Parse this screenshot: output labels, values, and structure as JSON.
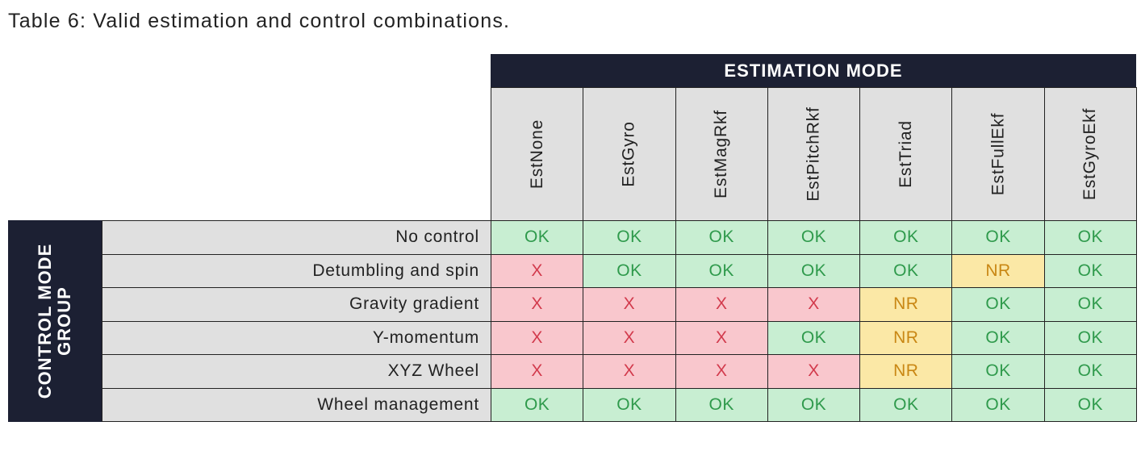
{
  "caption": "Table 6: Valid estimation and control combinations.",
  "column_group": "ESTIMATION MODE",
  "row_group": [
    "CONTROL MODE",
    "GROUP"
  ],
  "columns": [
    "EstNone",
    "EstGyro",
    "EstMagRkf",
    "EstPitchRkf",
    "EstTriad",
    "EstFullEkf",
    "EstGyroEkf"
  ],
  "rows": [
    {
      "label": "No control",
      "cells": [
        "OK",
        "OK",
        "OK",
        "OK",
        "OK",
        "OK",
        "OK"
      ]
    },
    {
      "label": "Detumbling and spin",
      "cells": [
        "X",
        "OK",
        "OK",
        "OK",
        "OK",
        "NR",
        "OK"
      ]
    },
    {
      "label": "Gravity gradient",
      "cells": [
        "X",
        "X",
        "X",
        "X",
        "NR",
        "OK",
        "OK"
      ]
    },
    {
      "label": "Y-momentum",
      "cells": [
        "X",
        "X",
        "X",
        "OK",
        "NR",
        "OK",
        "OK"
      ]
    },
    {
      "label": "XYZ Wheel",
      "cells": [
        "X",
        "X",
        "X",
        "X",
        "NR",
        "OK",
        "OK"
      ]
    },
    {
      "label": "Wheel management",
      "cells": [
        "OK",
        "OK",
        "OK",
        "OK",
        "OK",
        "OK",
        "OK"
      ]
    }
  ],
  "cell_colors": {
    "OK": {
      "fill": "#c8eed2",
      "text": "#2f9a4c"
    },
    "X": {
      "fill": "#f9c7cd",
      "text": "#d23a4c"
    },
    "NR": {
      "fill": "#fbe8a6",
      "text": "#c98714"
    }
  }
}
